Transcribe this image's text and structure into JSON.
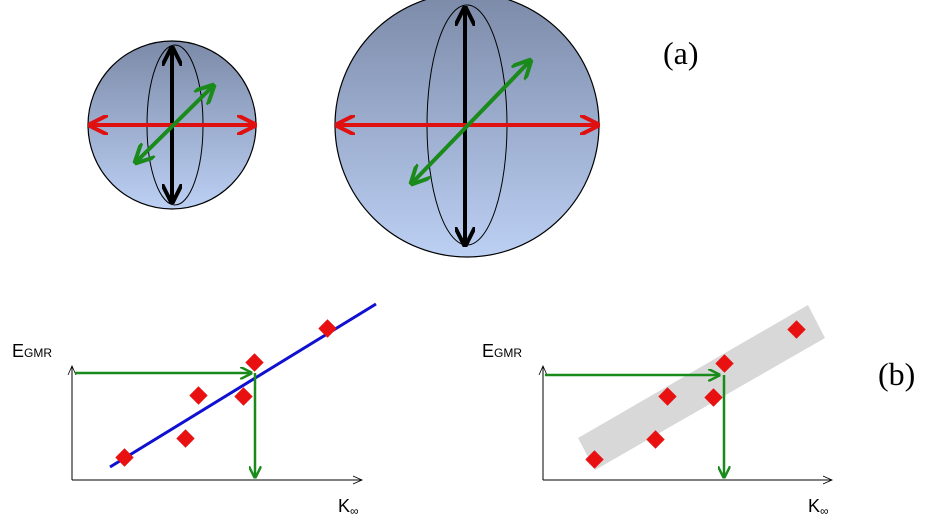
{
  "panel_a": {
    "label": "(a)"
  },
  "panel_b": {
    "label": "(b)",
    "plots": [
      {
        "y_label": {
          "main": "E",
          "sub": "GMR"
        },
        "x_label": {
          "main": "K",
          "sub": "∞"
        }
      },
      {
        "y_label": {
          "main": "E",
          "sub": "GMR"
        },
        "x_label": {
          "main": "K",
          "sub": "∞"
        }
      }
    ]
  }
}
